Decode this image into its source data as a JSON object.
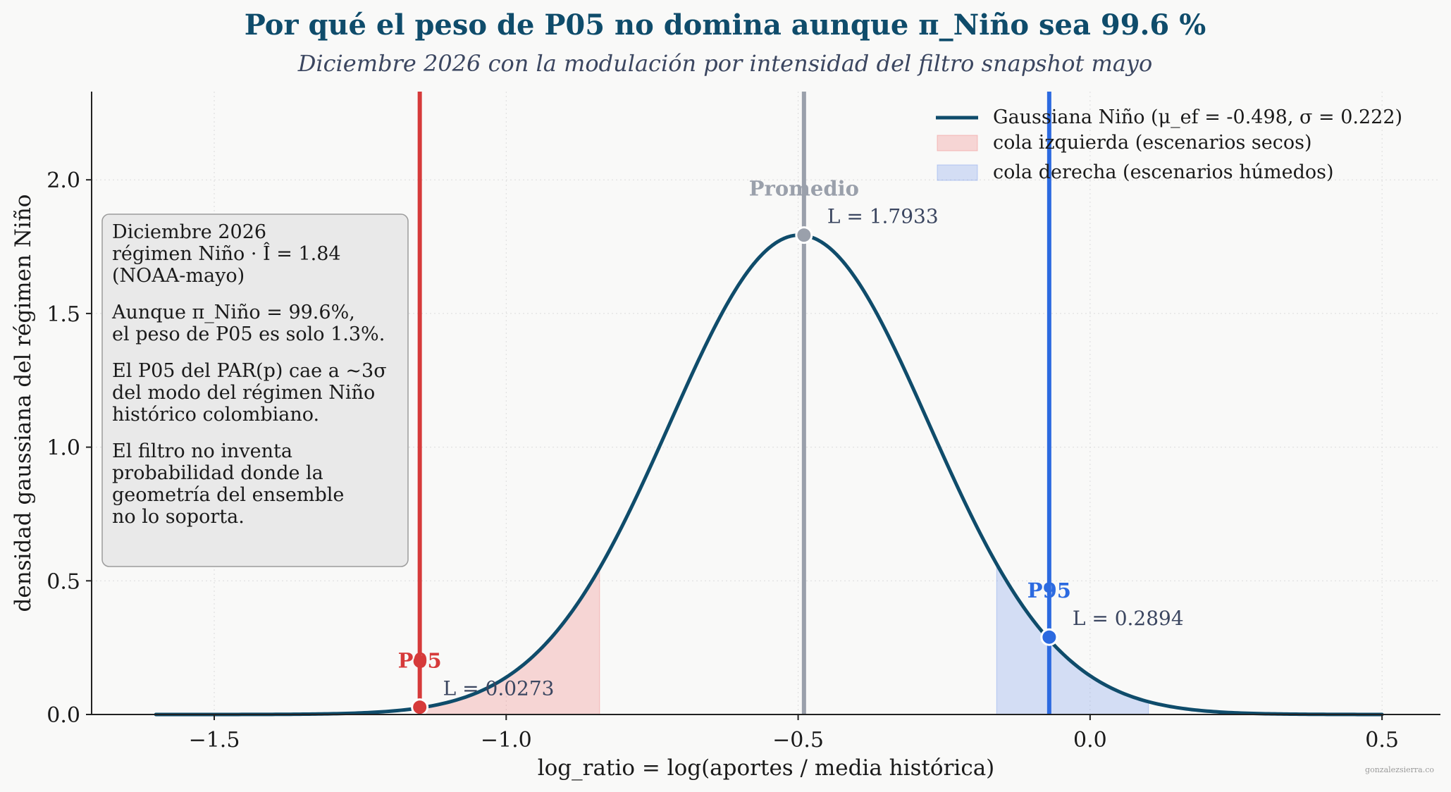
{
  "page": {
    "title": "Por qué el peso de P05 no domina aunque π_Niño sea 99.6 %",
    "subtitle": "Diciembre 2026 con la modulación por intensidad del filtro snapshot mayo",
    "watermark": "gonzalezsierra.co"
  },
  "chart_data": {
    "type": "line",
    "xlabel": "log_ratio = log(aportes / media histórica)",
    "ylabel": "densidad gaussiana del régimen Niño",
    "xlim": [
      -1.71,
      0.6
    ],
    "ylim": [
      0,
      2.33
    ],
    "xticks": [
      -1.5,
      -1.0,
      -0.5,
      0.0,
      0.5
    ],
    "xtick_labels": [
      "−1.5",
      "−1.0",
      "−0.5",
      "0.0",
      "0.5"
    ],
    "yticks": [
      0.0,
      0.5,
      1.0,
      1.5,
      2.0
    ],
    "ytick_labels": [
      "0.0",
      "0.5",
      "1.0",
      "1.5",
      "2.0"
    ],
    "grid": true,
    "legend_position": "top-right",
    "curve": {
      "mu": -0.498,
      "sigma": 0.222,
      "peak": 1.7933,
      "x_range": [
        -1.6,
        0.5
      ],
      "color": "#0f4c6b"
    },
    "left_tail": {
      "x_range": [
        -1.148,
        -0.84
      ],
      "color": "#f08080"
    },
    "right_tail": {
      "x_range": [
        -0.16,
        0.1
      ],
      "color": "#7b9bea"
    },
    "legend": [
      {
        "label": "Gaussiana Niño (μ_ef = -0.498, σ = 0.222)",
        "kind": "line",
        "color": "#0f4c6b"
      },
      {
        "label": "cola izquierda (escenarios secos)",
        "kind": "patch",
        "color": "#f08080"
      },
      {
        "label": "cola derecha (escenarios húmedos)",
        "kind": "patch",
        "color": "#7b9bea"
      }
    ],
    "markers": [
      {
        "name": "P05",
        "x": -1.148,
        "y": 0.0273,
        "label": "P05",
        "annotation": "L = 0.0273",
        "color": "#d63a3a"
      },
      {
        "name": "Promedio",
        "x": -0.49,
        "y": 1.7933,
        "label": "Promedio",
        "annotation": "L = 1.7933",
        "color": "#9aa0ab"
      },
      {
        "name": "P95",
        "x": -0.07,
        "y": 0.2894,
        "label": "P95",
        "annotation": "L = 0.2894",
        "color": "#2c6ae0"
      }
    ],
    "info_box": [
      "Diciembre 2026",
      "régimen Niño · Î = 1.84",
      "(NOAA-mayo)",
      "",
      "Aunque π_Niño = 99.6%,",
      "el peso de P05 es solo 1.3%.",
      "",
      "El P05 del PAR(p) cae a ~3σ",
      "del modo del régimen Niño",
      "histórico colombiano.",
      "",
      "El filtro no inventa",
      "probabilidad donde la",
      "geometría del ensemble",
      "no lo soporta."
    ]
  }
}
